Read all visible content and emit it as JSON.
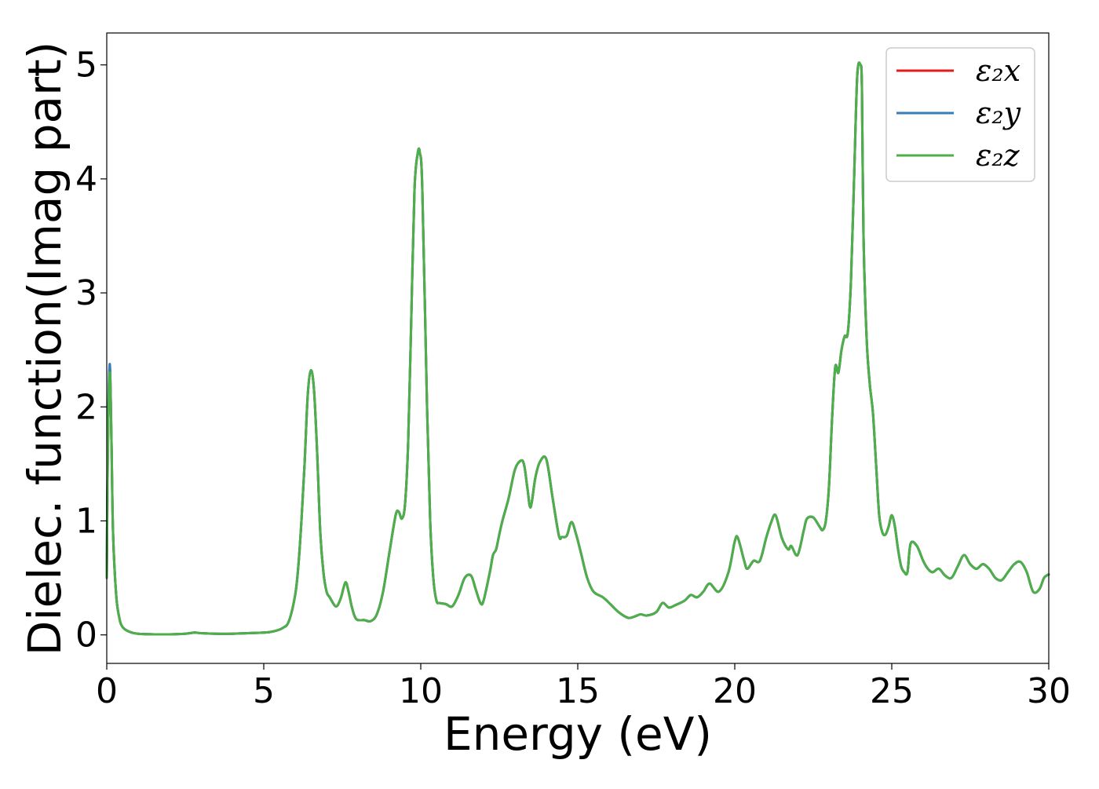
{
  "chart_data": {
    "type": "line",
    "title": "",
    "xlabel": "Energy (eV)",
    "ylabel": "Dielec. function(Imag part)",
    "xlim": [
      0,
      30
    ],
    "ylim": [
      -0.25,
      5.28
    ],
    "xticks": [
      0,
      5,
      10,
      15,
      20,
      25,
      30
    ],
    "yticks": [
      0,
      1,
      2,
      3,
      4,
      5
    ],
    "grid": false,
    "legend_position": "top-right",
    "x": [
      0,
      0.02,
      0.05,
      0.1,
      0.15,
      0.2,
      0.3,
      0.4,
      0.5,
      0.7,
      1.0,
      1.5,
      2.0,
      2.5,
      2.8,
      3.0,
      3.5,
      4.0,
      4.5,
      5.0,
      5.3,
      5.6,
      5.8,
      6.0,
      6.1,
      6.2,
      6.3,
      6.4,
      6.5,
      6.6,
      6.7,
      6.8,
      6.9,
      7.0,
      7.1,
      7.3,
      7.45,
      7.6,
      7.7,
      7.8,
      7.9,
      8.0,
      8.2,
      8.4,
      8.6,
      8.8,
      9.0,
      9.2,
      9.3,
      9.4,
      9.5,
      9.6,
      9.7,
      9.8,
      9.9,
      9.97,
      10.05,
      10.2,
      10.3,
      10.4,
      10.5,
      10.6,
      10.8,
      11.0,
      11.2,
      11.4,
      11.6,
      11.75,
      11.9,
      12.0,
      12.2,
      12.3,
      12.4,
      12.5,
      12.6,
      12.8,
      13.0,
      13.2,
      13.3,
      13.4,
      13.5,
      13.65,
      13.8,
      14.0,
      14.2,
      14.4,
      14.5,
      14.65,
      14.8,
      14.95,
      15.1,
      15.3,
      15.5,
      15.8,
      16.0,
      16.3,
      16.6,
      16.8,
      17.0,
      17.2,
      17.5,
      17.7,
      17.9,
      18.1,
      18.4,
      18.6,
      18.8,
      19.0,
      19.2,
      19.5,
      19.8,
      20.0,
      20.1,
      20.3,
      20.4,
      20.6,
      20.8,
      21.0,
      21.15,
      21.3,
      21.5,
      21.7,
      21.8,
      22.0,
      22.2,
      22.3,
      22.5,
      22.7,
      22.8,
      22.9,
      23.0,
      23.1,
      23.2,
      23.3,
      23.4,
      23.5,
      23.6,
      23.7,
      23.8,
      23.9,
      24.0,
      24.05,
      24.1,
      24.2,
      24.3,
      24.4,
      24.5,
      24.6,
      24.7,
      24.8,
      24.9,
      25.0,
      25.1,
      25.2,
      25.3,
      25.4,
      25.5,
      25.6,
      25.8,
      26.0,
      26.15,
      26.3,
      26.5,
      26.7,
      26.9,
      27.1,
      27.3,
      27.5,
      27.7,
      27.9,
      28.1,
      28.3,
      28.5,
      28.7,
      28.9,
      29.1,
      29.3,
      29.5,
      29.7,
      29.85,
      30.0
    ],
    "series": [
      {
        "name": "ε₂x",
        "color": "#e41a1c",
        "values": [
          0.5,
          1.2,
          1.9,
          2.35,
          1.7,
          0.9,
          0.35,
          0.15,
          0.07,
          0.03,
          0.01,
          0.005,
          0.005,
          0.01,
          0.02,
          0.015,
          0.01,
          0.01,
          0.015,
          0.02,
          0.03,
          0.06,
          0.12,
          0.35,
          0.6,
          1.0,
          1.5,
          2.1,
          2.32,
          2.15,
          1.6,
          0.9,
          0.55,
          0.38,
          0.33,
          0.25,
          0.32,
          0.46,
          0.38,
          0.25,
          0.16,
          0.13,
          0.13,
          0.12,
          0.18,
          0.38,
          0.72,
          1.05,
          1.08,
          1.02,
          1.15,
          1.7,
          2.8,
          3.9,
          4.22,
          4.23,
          3.9,
          2.0,
          1.0,
          0.5,
          0.3,
          0.28,
          0.27,
          0.25,
          0.35,
          0.5,
          0.52,
          0.4,
          0.28,
          0.3,
          0.55,
          0.7,
          0.75,
          0.88,
          1.0,
          1.2,
          1.45,
          1.53,
          1.48,
          1.28,
          1.12,
          1.38,
          1.52,
          1.54,
          1.2,
          0.87,
          0.86,
          0.87,
          0.99,
          0.88,
          0.72,
          0.5,
          0.38,
          0.33,
          0.28,
          0.2,
          0.15,
          0.16,
          0.18,
          0.17,
          0.2,
          0.28,
          0.24,
          0.26,
          0.3,
          0.35,
          0.33,
          0.38,
          0.45,
          0.38,
          0.55,
          0.82,
          0.85,
          0.65,
          0.58,
          0.65,
          0.65,
          0.85,
          0.98,
          1.05,
          0.85,
          0.75,
          0.78,
          0.7,
          0.92,
          1.02,
          1.03,
          0.95,
          0.92,
          1.0,
          1.3,
          1.9,
          2.35,
          2.3,
          2.5,
          2.62,
          2.65,
          3.1,
          4.0,
          4.9,
          5.0,
          4.8,
          3.5,
          2.6,
          2.2,
          1.95,
          1.5,
          1.05,
          0.9,
          0.88,
          0.95,
          1.05,
          0.95,
          0.75,
          0.6,
          0.55,
          0.55,
          0.8,
          0.78,
          0.65,
          0.58,
          0.55,
          0.58,
          0.52,
          0.5,
          0.6,
          0.7,
          0.62,
          0.58,
          0.62,
          0.58,
          0.5,
          0.48,
          0.55,
          0.62,
          0.64,
          0.55,
          0.38,
          0.4,
          0.5,
          0.53
        ]
      },
      {
        "name": "ε₂y",
        "color": "#377eb8",
        "values": [
          0.5,
          1.3,
          2.0,
          2.37,
          1.7,
          0.9,
          0.35,
          0.15,
          0.07,
          0.03,
          0.01,
          0.005,
          0.005,
          0.01,
          0.02,
          0.015,
          0.01,
          0.01,
          0.015,
          0.02,
          0.03,
          0.06,
          0.12,
          0.35,
          0.6,
          1.0,
          1.5,
          2.1,
          2.32,
          2.15,
          1.6,
          0.9,
          0.55,
          0.38,
          0.33,
          0.25,
          0.32,
          0.46,
          0.38,
          0.25,
          0.16,
          0.13,
          0.13,
          0.12,
          0.18,
          0.38,
          0.72,
          1.05,
          1.08,
          1.02,
          1.15,
          1.7,
          2.8,
          3.9,
          4.22,
          4.23,
          3.9,
          2.0,
          1.0,
          0.5,
          0.3,
          0.28,
          0.27,
          0.25,
          0.35,
          0.5,
          0.52,
          0.4,
          0.28,
          0.3,
          0.55,
          0.7,
          0.75,
          0.88,
          1.0,
          1.2,
          1.45,
          1.53,
          1.48,
          1.28,
          1.12,
          1.38,
          1.52,
          1.54,
          1.2,
          0.87,
          0.86,
          0.87,
          0.99,
          0.88,
          0.72,
          0.5,
          0.38,
          0.33,
          0.28,
          0.2,
          0.15,
          0.16,
          0.18,
          0.17,
          0.2,
          0.28,
          0.24,
          0.26,
          0.3,
          0.35,
          0.33,
          0.38,
          0.45,
          0.38,
          0.55,
          0.82,
          0.85,
          0.65,
          0.58,
          0.65,
          0.65,
          0.85,
          0.98,
          1.05,
          0.85,
          0.75,
          0.78,
          0.7,
          0.92,
          1.02,
          1.03,
          0.95,
          0.92,
          1.0,
          1.3,
          1.9,
          2.35,
          2.3,
          2.5,
          2.62,
          2.65,
          3.1,
          4.0,
          4.9,
          5.0,
          4.8,
          3.5,
          2.6,
          2.2,
          1.95,
          1.5,
          1.05,
          0.9,
          0.88,
          0.95,
          1.05,
          0.95,
          0.75,
          0.6,
          0.55,
          0.55,
          0.8,
          0.78,
          0.65,
          0.58,
          0.55,
          0.58,
          0.52,
          0.5,
          0.6,
          0.7,
          0.62,
          0.58,
          0.62,
          0.58,
          0.5,
          0.48,
          0.55,
          0.62,
          0.64,
          0.55,
          0.38,
          0.4,
          0.5,
          0.53
        ]
      },
      {
        "name": "ε₂z",
        "color": "#4daf4a",
        "values": [
          0.5,
          1.2,
          1.9,
          2.3,
          1.7,
          0.9,
          0.35,
          0.15,
          0.07,
          0.03,
          0.01,
          0.005,
          0.005,
          0.01,
          0.02,
          0.015,
          0.01,
          0.01,
          0.015,
          0.02,
          0.03,
          0.06,
          0.12,
          0.35,
          0.6,
          1.0,
          1.5,
          2.1,
          2.32,
          2.15,
          1.6,
          0.9,
          0.55,
          0.38,
          0.33,
          0.25,
          0.32,
          0.46,
          0.38,
          0.25,
          0.16,
          0.13,
          0.13,
          0.12,
          0.18,
          0.38,
          0.72,
          1.05,
          1.08,
          1.02,
          1.15,
          1.7,
          2.8,
          3.9,
          4.22,
          4.23,
          3.9,
          2.0,
          1.0,
          0.5,
          0.3,
          0.28,
          0.27,
          0.25,
          0.35,
          0.5,
          0.52,
          0.4,
          0.28,
          0.3,
          0.55,
          0.7,
          0.75,
          0.88,
          1.0,
          1.2,
          1.45,
          1.53,
          1.48,
          1.28,
          1.12,
          1.38,
          1.52,
          1.54,
          1.2,
          0.87,
          0.86,
          0.87,
          0.99,
          0.88,
          0.72,
          0.5,
          0.38,
          0.33,
          0.28,
          0.2,
          0.15,
          0.16,
          0.18,
          0.17,
          0.2,
          0.28,
          0.24,
          0.26,
          0.3,
          0.35,
          0.33,
          0.38,
          0.45,
          0.38,
          0.55,
          0.82,
          0.85,
          0.65,
          0.58,
          0.65,
          0.65,
          0.85,
          0.98,
          1.05,
          0.85,
          0.75,
          0.78,
          0.7,
          0.92,
          1.02,
          1.03,
          0.95,
          0.92,
          1.0,
          1.3,
          1.9,
          2.35,
          2.3,
          2.5,
          2.62,
          2.65,
          3.1,
          4.0,
          4.9,
          5.0,
          4.8,
          3.5,
          2.6,
          2.2,
          1.95,
          1.5,
          1.05,
          0.9,
          0.88,
          0.95,
          1.05,
          0.95,
          0.75,
          0.6,
          0.55,
          0.55,
          0.8,
          0.78,
          0.65,
          0.58,
          0.55,
          0.58,
          0.52,
          0.5,
          0.6,
          0.7,
          0.62,
          0.58,
          0.62,
          0.58,
          0.5,
          0.48,
          0.55,
          0.62,
          0.64,
          0.55,
          0.38,
          0.4,
          0.5,
          0.53
        ]
      }
    ]
  }
}
